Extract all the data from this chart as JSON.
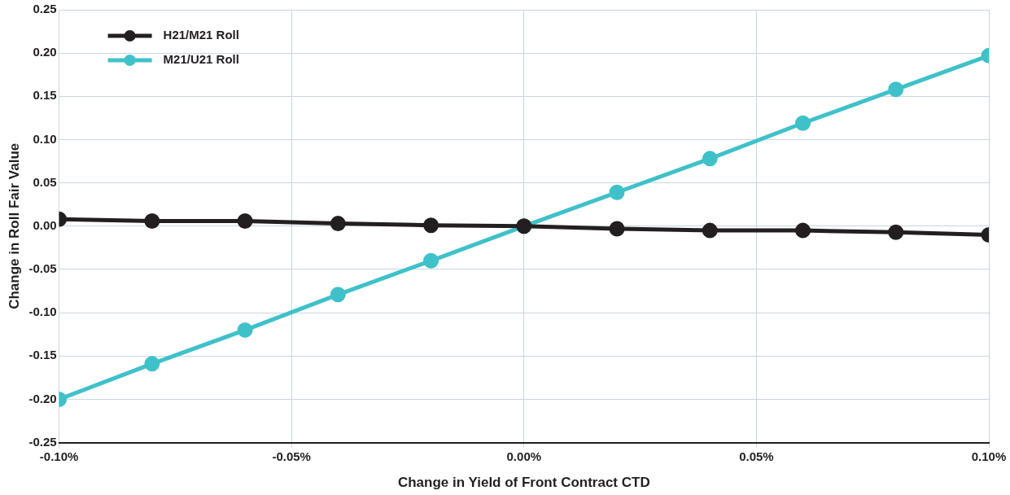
{
  "chart_data": {
    "type": "line",
    "xlabel": "Change in Yield of Front Contract CTD",
    "ylabel": "Change in Roll Fair Value",
    "x": [
      -0.1,
      -0.08,
      -0.06,
      -0.04,
      -0.02,
      0,
      0.02,
      0.04,
      0.06,
      0.08,
      0.1
    ],
    "series": [
      {
        "name": "H21/M21 Roll",
        "color": "#231f20",
        "values": [
          0.008,
          0.006,
          0.006,
          0.003,
          0.001,
          0,
          -0.003,
          -0.005,
          -0.005,
          -0.007,
          -0.01
        ]
      },
      {
        "name": "M21/U21 Roll",
        "color": "#3fc1c9",
        "values": [
          -0.2,
          -0.159,
          -0.12,
          -0.079,
          -0.04,
          0,
          0.039,
          0.078,
          0.119,
          0.158,
          0.197
        ]
      }
    ],
    "xlim": [
      -0.1,
      0.1
    ],
    "xticks": [
      {
        "value": -0.1,
        "label": "-0.10%"
      },
      {
        "value": -0.05,
        "label": "-0.05%"
      },
      {
        "value": 0,
        "label": "0.00%"
      },
      {
        "value": 0.05,
        "label": "0.05%"
      },
      {
        "value": 0.1,
        "label": "0.10%"
      }
    ],
    "ylim": [
      -0.25,
      0.25
    ],
    "yticks": [
      {
        "value": -0.25,
        "label": "-0.25"
      },
      {
        "value": -0.2,
        "label": "-0.20"
      },
      {
        "value": -0.15,
        "label": "-0.15"
      },
      {
        "value": -0.1,
        "label": "-0.10"
      },
      {
        "value": -0.05,
        "label": "-0.05"
      },
      {
        "value": 0,
        "label": "0.00"
      },
      {
        "value": 0.05,
        "label": "0.05"
      },
      {
        "value": 0.1,
        "label": "0.10"
      },
      {
        "value": 0.15,
        "label": "0.15"
      },
      {
        "value": 0.2,
        "label": "0.20"
      },
      {
        "value": 0.25,
        "label": "0.25"
      }
    ],
    "grid": true,
    "legend": "top left",
    "marker": "circle",
    "line_style": "solid"
  }
}
